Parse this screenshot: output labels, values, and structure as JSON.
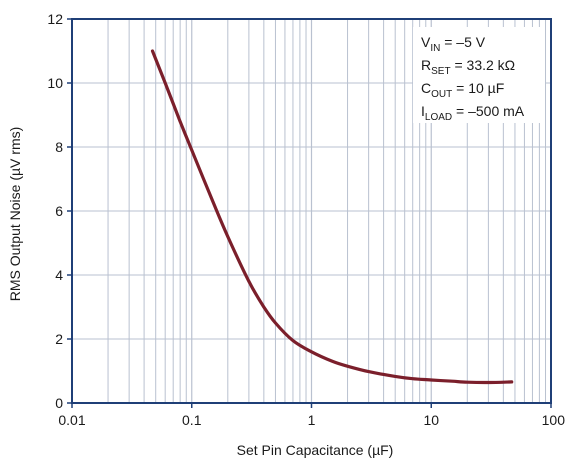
{
  "chart_data": {
    "type": "line",
    "title": "",
    "xlabel": "Set Pin Capacitance (µF)",
    "ylabel": "RMS Output Noise (µV rms)",
    "xscale": "log",
    "xlim": [
      0.01,
      100
    ],
    "ylim": [
      0,
      12
    ],
    "x_tick_labels": [
      "0.01",
      "0.1",
      "1",
      "10",
      "100"
    ],
    "y_ticks": [
      0,
      2,
      4,
      6,
      8,
      10,
      12
    ],
    "grid": true,
    "colors": {
      "line": "#7b1f2b",
      "grid": "#b9c1d0",
      "frame": "#1f3f77"
    },
    "series": [
      {
        "x": [
          0.047,
          0.06,
          0.08,
          0.1,
          0.15,
          0.2,
          0.3,
          0.4,
          0.5,
          0.7,
          1,
          1.5,
          2,
          3,
          5,
          7,
          10,
          15,
          20,
          30,
          47
        ],
        "y": [
          11.0,
          10.0,
          8.8,
          7.9,
          6.3,
          5.2,
          3.8,
          3.0,
          2.5,
          1.95,
          1.6,
          1.3,
          1.15,
          0.98,
          0.83,
          0.76,
          0.72,
          0.68,
          0.65,
          0.64,
          0.66
        ]
      }
    ],
    "annotations": [
      {
        "main": "V",
        "sub": "IN",
        "rest": " = –5 V"
      },
      {
        "main": "R",
        "sub": "SET",
        "rest": " = 33.2 kΩ"
      },
      {
        "main": "C",
        "sub": "OUT",
        "rest": " = 10 µF"
      },
      {
        "main": "I",
        "sub": "LOAD",
        "rest": " = –500 mA"
      }
    ]
  }
}
